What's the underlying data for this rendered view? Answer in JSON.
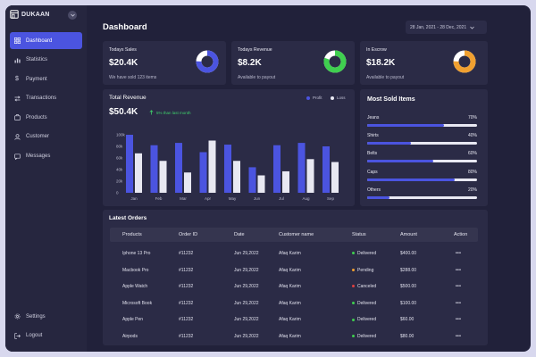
{
  "brand": {
    "name": "DUKAAN"
  },
  "sidebar": {
    "items": [
      {
        "label": "Dashboard",
        "icon": "grid-icon",
        "active": true
      },
      {
        "label": "Statistics",
        "icon": "bar-chart-icon"
      },
      {
        "label": "Payment",
        "icon": "dollar-icon"
      },
      {
        "label": "Transactions",
        "icon": "transactions-icon"
      },
      {
        "label": "Products",
        "icon": "box-icon"
      },
      {
        "label": "Customer",
        "icon": "user-icon"
      },
      {
        "label": "Messages",
        "icon": "message-icon"
      }
    ],
    "bottom": [
      {
        "label": "Settings",
        "icon": "gear-icon"
      },
      {
        "label": "Logout",
        "icon": "logout-icon"
      }
    ]
  },
  "header": {
    "title": "Dashboard",
    "date_range": "28 Jan, 2021 - 28 Dec, 2021"
  },
  "stats": [
    {
      "label": "Todays Sales",
      "value": "$20.4K",
      "sub": "We have sold 123 items",
      "ring_color": "#4b54e0",
      "ring_fraction": 0.75
    },
    {
      "label": "Todays Revenue",
      "value": "$8.2K",
      "sub": "Available to payout",
      "ring_color": "#3fcf4f",
      "ring_fraction": 0.8
    },
    {
      "label": "In Escrow",
      "value": "$18.2K",
      "sub": "Available to payout",
      "ring_color": "#f0a030",
      "ring_fraction": 0.75
    }
  ],
  "revenue": {
    "title": "Total Revenue",
    "value": "$50.4K",
    "change": "5% than last month",
    "legend": [
      {
        "label": "Profit",
        "color": "#4b54e0"
      },
      {
        "label": "Loss",
        "color": "#e8e8f2"
      }
    ]
  },
  "chart_data": {
    "type": "bar",
    "categories": [
      "Jan",
      "Feb",
      "Mar",
      "Apr",
      "May",
      "Jun",
      "Jul",
      "Aug",
      "Sep"
    ],
    "series": [
      {
        "name": "Profit",
        "values": [
          100,
          82,
          86,
          70,
          83,
          44,
          82,
          86,
          80
        ]
      },
      {
        "name": "Loss",
        "values": [
          68,
          55,
          35,
          90,
          55,
          30,
          37,
          58,
          53
        ]
      }
    ],
    "ylim": [
      0,
      100
    ],
    "yticks": [
      "0",
      "20k",
      "40k",
      "60k",
      "80k",
      "100k"
    ],
    "grid": false
  },
  "most_sold": {
    "title": "Most Sold Items",
    "items": [
      {
        "name": "Jeans",
        "pct": "70%",
        "value": 0.7
      },
      {
        "name": "Shirts",
        "pct": "40%",
        "value": 0.4
      },
      {
        "name": "Belts",
        "pct": "60%",
        "value": 0.6
      },
      {
        "name": "Caps",
        "pct": "80%",
        "value": 0.8
      },
      {
        "name": "Others",
        "pct": "20%",
        "value": 0.2
      }
    ]
  },
  "orders": {
    "title": "Latest Orders",
    "columns": [
      "Products",
      "Order ID",
      "Date",
      "Customer name",
      "Status",
      "Amount",
      "Action"
    ],
    "rows": [
      {
        "product": "Iphone 13 Pro",
        "id": "#11232",
        "date": "Jun 29,2022",
        "customer": "Afaq Karim",
        "status": "Delivered",
        "status_color": "#3fcf4f",
        "amount": "$400.00",
        "action": "•••"
      },
      {
        "product": "Macbook Pro",
        "id": "#11232",
        "date": "Jun 29,2022",
        "customer": "Afaq Karim",
        "status": "Pending",
        "status_color": "#f0a030",
        "amount": "$288.00",
        "action": "•••"
      },
      {
        "product": "Apple Watch",
        "id": "#11232",
        "date": "Jun 29,2022",
        "customer": "Afaq Karim",
        "status": "Canceled",
        "status_color": "#e04040",
        "amount": "$500.00",
        "action": "•••"
      },
      {
        "product": "Microsoft Book",
        "id": "#11232",
        "date": "Jun 29,2022",
        "customer": "Afaq Karim",
        "status": "Delivered",
        "status_color": "#3fcf4f",
        "amount": "$100.00",
        "action": "•••"
      },
      {
        "product": "Apple Pen",
        "id": "#11232",
        "date": "Jun 29,2022",
        "customer": "Afaq Karim",
        "status": "Delivered",
        "status_color": "#3fcf4f",
        "amount": "$60.00",
        "action": "•••"
      },
      {
        "product": "Airpods",
        "id": "#11232",
        "date": "Jun 29,2022",
        "customer": "Afaq Karim",
        "status": "Delivered",
        "status_color": "#3fcf4f",
        "amount": "$80.00",
        "action": "•••"
      }
    ]
  }
}
